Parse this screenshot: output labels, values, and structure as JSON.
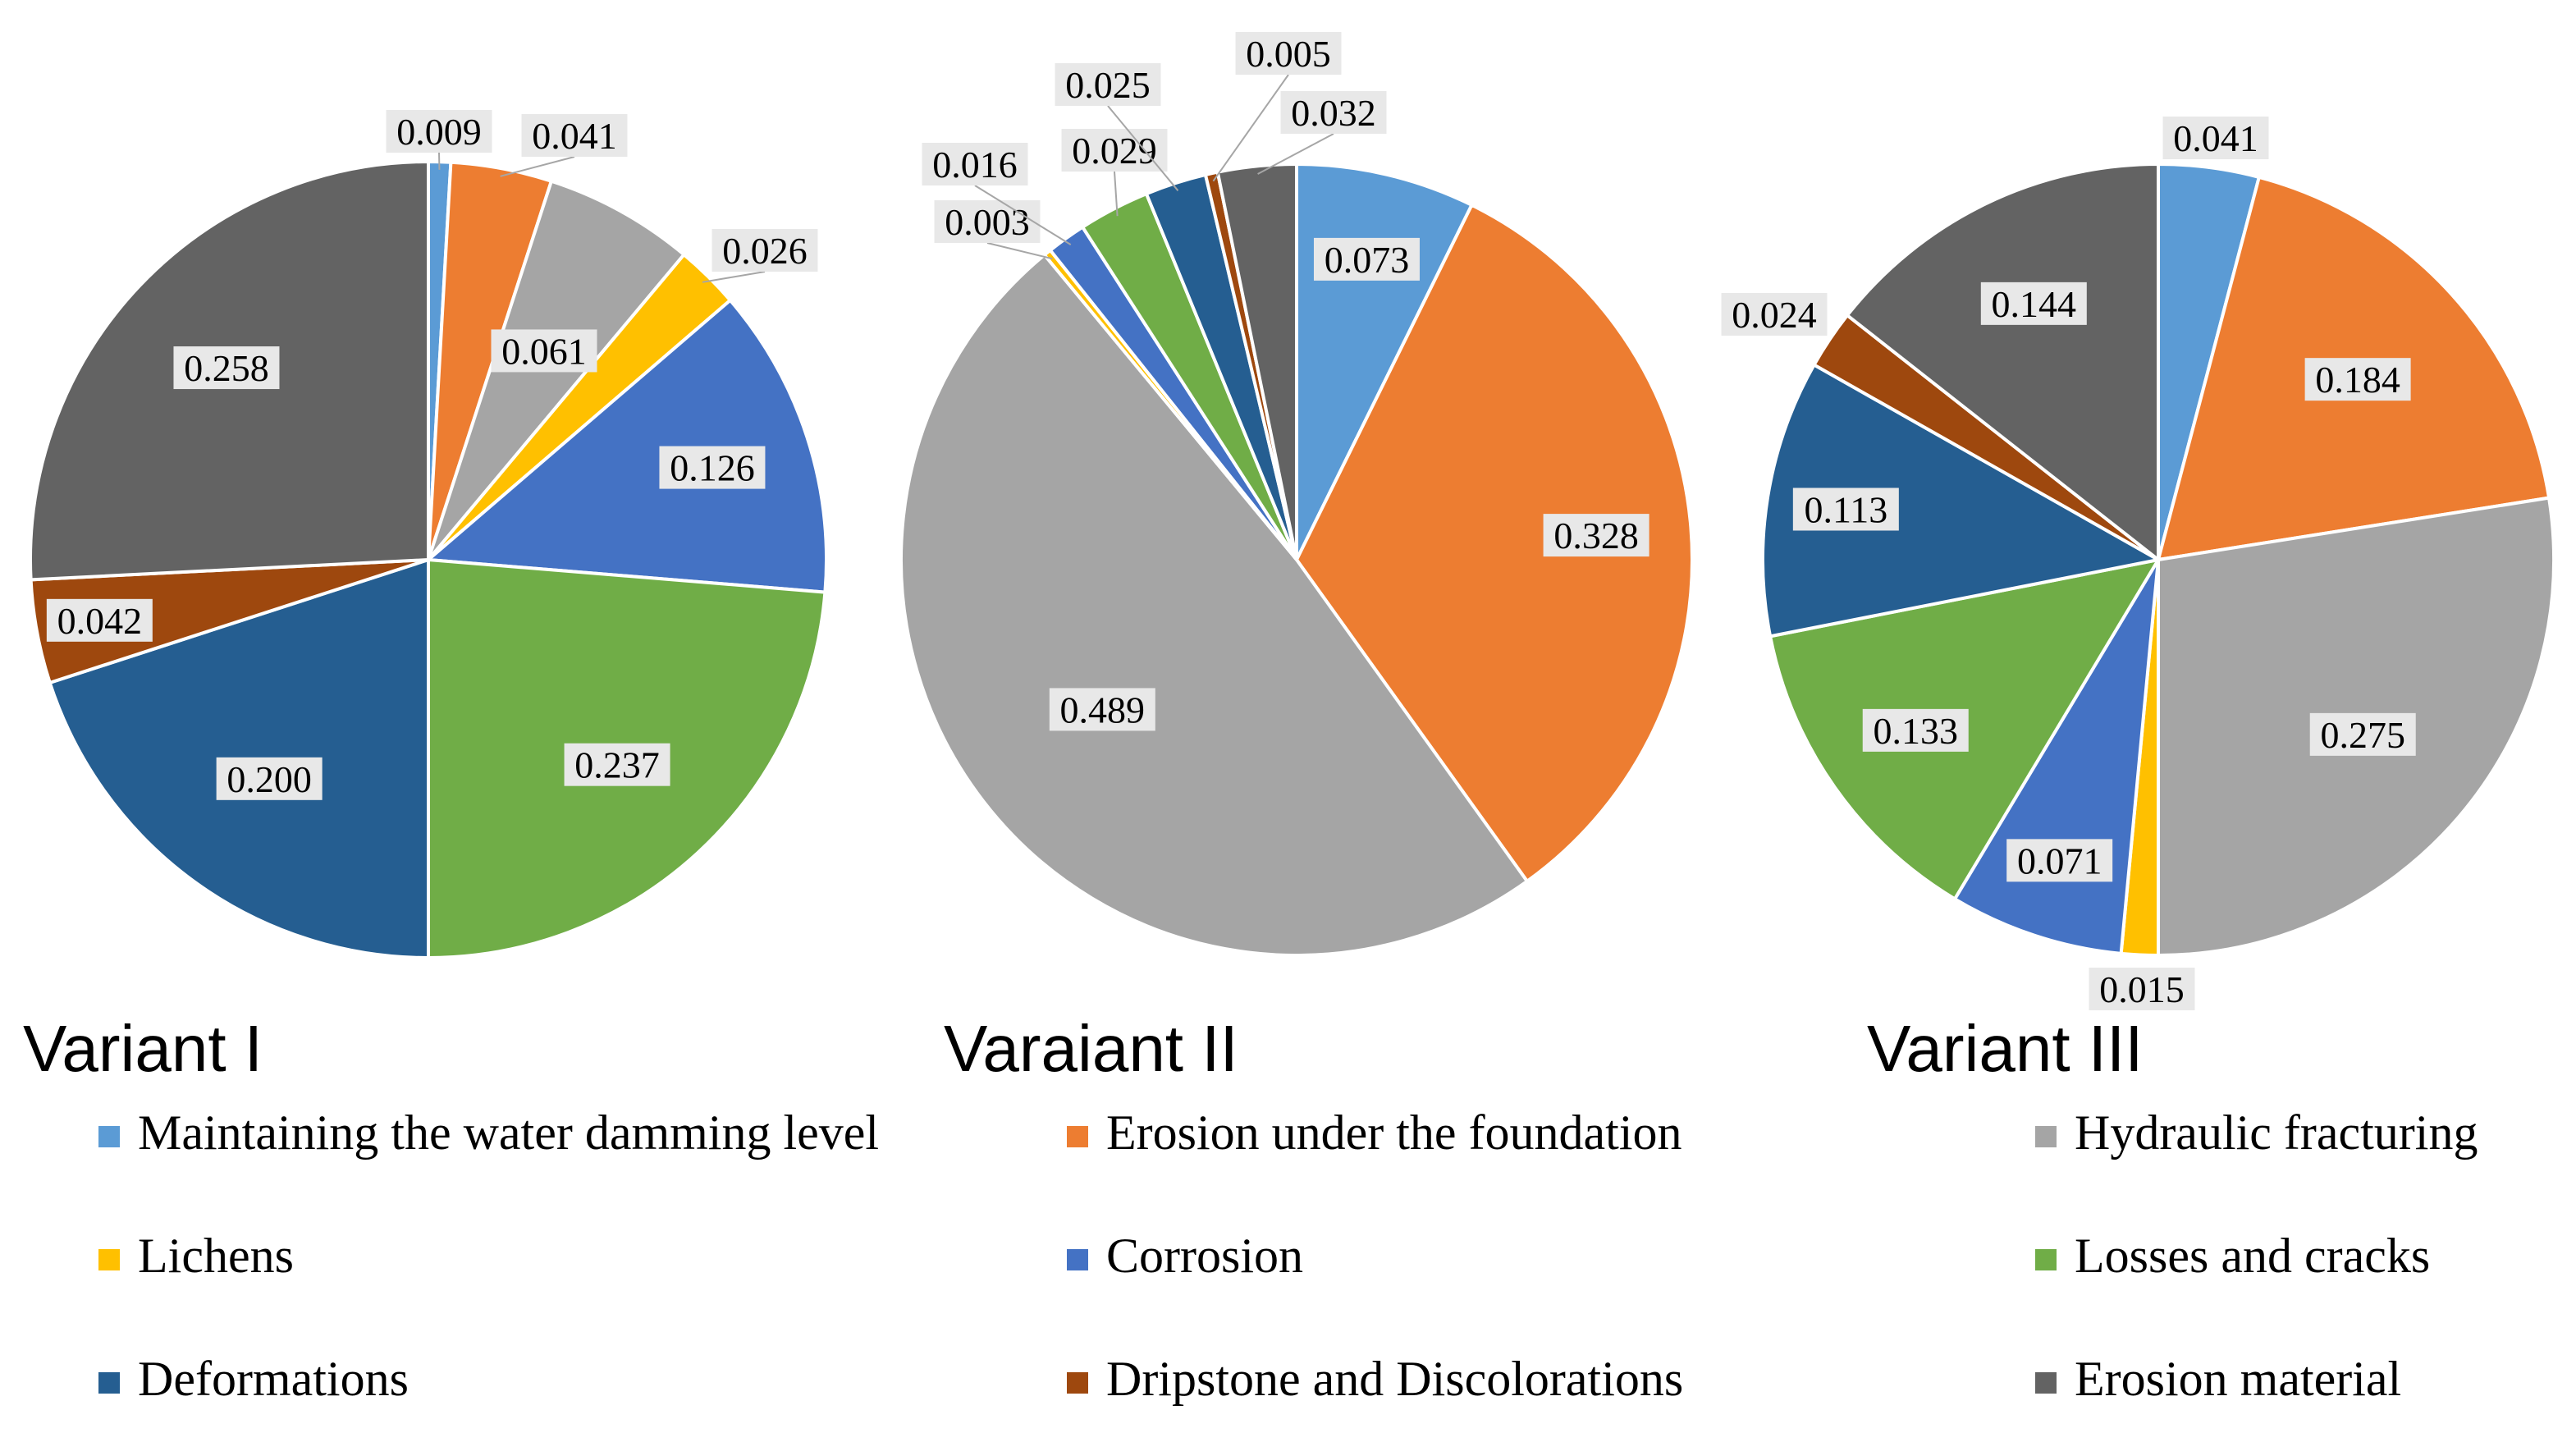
{
  "chart_data": {
    "type": "pie",
    "categories": [
      "Maintaining the water damming level",
      "Erosion under the foundation",
      "Hydraulic fracturing",
      "Lichens",
      "Corrosion",
      "Losses and cracks",
      "Deformations",
      "Dripstone and Discolorations",
      "Erosion material"
    ],
    "colors": [
      "#5b9bd5",
      "#ed7d31",
      "#a5a5a5",
      "#ffc000",
      "#4472c4",
      "#70ad47",
      "#255e91",
      "#9e480e",
      "#636363"
    ],
    "legend_position": "bottom",
    "charts": [
      {
        "title": "Variant I",
        "values": [
          0.009,
          0.041,
          0.061,
          0.026,
          0.126,
          0.237,
          0.2,
          0.042,
          0.258
        ],
        "labels": [
          "0.009",
          "0.041",
          "0.061",
          "0.026",
          "0.126",
          "0.237",
          "0.200",
          "0.042",
          "0.258"
        ]
      },
      {
        "title": "Varaiant II",
        "values": [
          0.073,
          0.328,
          0.489,
          0.003,
          0.016,
          0.029,
          0.025,
          0.005,
          0.032
        ],
        "labels": [
          "0.073",
          "0.328",
          "0.489",
          "0.003",
          "0.016",
          "0.029",
          "0.025",
          "0.005",
          "0.032"
        ]
      },
      {
        "title": "Variant III",
        "values": [
          0.041,
          0.184,
          0.275,
          0.015,
          0.071,
          0.133,
          0.113,
          0.024,
          0.144
        ],
        "labels": [
          "0.041",
          "0.184",
          "0.275",
          "0.015",
          "0.071",
          "0.133",
          "0.113",
          "0.024",
          "0.144"
        ]
      }
    ]
  }
}
